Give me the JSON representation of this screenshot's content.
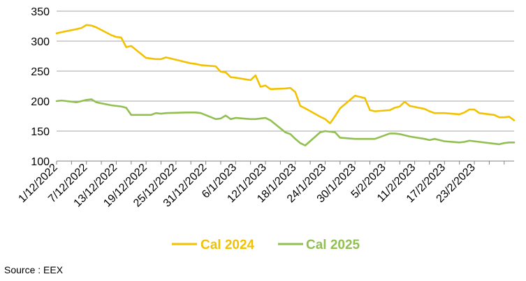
{
  "chart_data": {
    "type": "line",
    "title": "",
    "xlabel": "",
    "ylabel": "",
    "ylim": [
      100,
      350
    ],
    "yticks": [
      100,
      150,
      200,
      250,
      300,
      350
    ],
    "grid": true,
    "legend_position": "bottom",
    "x_tick_labels": [
      "1/12/2022",
      "7/12/2022",
      "13/12/2022",
      "19/12/2022",
      "25/12/2022",
      "31/12/2022",
      "6/1/2023",
      "12/1/2023",
      "18/1/2023",
      "24/1/2023",
      "30/1/2023",
      "5/2/2023",
      "11/2/2023",
      "17/2/2023",
      "23/2/2023"
    ],
    "x_range": [
      "2022-12-01",
      "2023-03-03"
    ],
    "series": [
      {
        "name": "Cal 2024",
        "color": "#F2C200",
        "x": [
          "2022-12-01",
          "2022-12-02",
          "2022-12-05",
          "2022-12-06",
          "2022-12-07",
          "2022-12-08",
          "2022-12-09",
          "2022-12-12",
          "2022-12-13",
          "2022-12-14",
          "2022-12-15",
          "2022-12-16",
          "2022-12-19",
          "2022-12-20",
          "2022-12-21",
          "2022-12-22",
          "2022-12-23",
          "2022-12-27",
          "2022-12-28",
          "2022-12-29",
          "2022-12-30",
          "2023-01-02",
          "2023-01-03",
          "2023-01-04",
          "2023-01-05",
          "2023-01-06",
          "2023-01-09",
          "2023-01-10",
          "2023-01-11",
          "2023-01-12",
          "2023-01-13",
          "2023-01-16",
          "2023-01-17",
          "2023-01-18",
          "2023-01-19",
          "2023-01-20",
          "2023-01-23",
          "2023-01-24",
          "2023-01-25",
          "2023-01-26",
          "2023-01-27",
          "2023-01-30",
          "2023-01-31",
          "2023-02-01",
          "2023-02-02",
          "2023-02-03",
          "2023-02-06",
          "2023-02-07",
          "2023-02-08",
          "2023-02-09",
          "2023-02-10",
          "2023-02-13",
          "2023-02-14",
          "2023-02-15",
          "2023-02-16",
          "2023-02-17",
          "2023-02-20",
          "2023-02-21",
          "2023-02-22",
          "2023-02-23",
          "2023-02-24",
          "2023-02-27",
          "2023-02-28",
          "2023-03-01",
          "2023-03-02",
          "2023-03-03"
        ],
        "values": [
          313,
          315,
          320,
          322,
          327,
          326,
          323,
          310,
          307,
          306,
          290,
          292,
          272,
          271,
          270,
          270,
          273,
          265,
          263,
          262,
          260,
          258,
          249,
          248,
          240,
          239,
          235,
          243,
          224,
          226,
          220,
          221,
          222,
          215,
          192,
          188,
          174,
          170,
          163,
          175,
          188,
          209,
          207,
          205,
          185,
          183,
          185,
          189,
          191,
          199,
          192,
          187,
          183,
          180,
          180,
          180,
          178,
          181,
          186,
          186,
          180,
          177,
          173,
          173,
          174,
          168
        ]
      },
      {
        "name": "Cal 2025",
        "color": "#92C050",
        "x": [
          "2022-12-01",
          "2022-12-02",
          "2022-12-05",
          "2022-12-06",
          "2022-12-07",
          "2022-12-08",
          "2022-12-09",
          "2022-12-12",
          "2022-12-13",
          "2022-12-14",
          "2022-12-15",
          "2022-12-16",
          "2022-12-19",
          "2022-12-20",
          "2022-12-21",
          "2022-12-22",
          "2022-12-23",
          "2022-12-27",
          "2022-12-28",
          "2022-12-29",
          "2022-12-30",
          "2023-01-02",
          "2023-01-03",
          "2023-01-04",
          "2023-01-05",
          "2023-01-06",
          "2023-01-09",
          "2023-01-10",
          "2023-01-11",
          "2023-01-12",
          "2023-01-13",
          "2023-01-16",
          "2023-01-17",
          "2023-01-18",
          "2023-01-19",
          "2023-01-20",
          "2023-01-23",
          "2023-01-24",
          "2023-01-25",
          "2023-01-26",
          "2023-01-27",
          "2023-01-30",
          "2023-01-31",
          "2023-02-01",
          "2023-02-02",
          "2023-02-03",
          "2023-02-06",
          "2023-02-07",
          "2023-02-08",
          "2023-02-09",
          "2023-02-10",
          "2023-02-13",
          "2023-02-14",
          "2023-02-15",
          "2023-02-16",
          "2023-02-17",
          "2023-02-20",
          "2023-02-21",
          "2023-02-22",
          "2023-02-23",
          "2023-02-24",
          "2023-02-27",
          "2023-02-28",
          "2023-03-01",
          "2023-03-02",
          "2023-03-03"
        ],
        "values": [
          200,
          201,
          198,
          200,
          202,
          203,
          198,
          193,
          192,
          191,
          189,
          177,
          177,
          177,
          180,
          179,
          180,
          181,
          181,
          181,
          180,
          170,
          171,
          176,
          170,
          172,
          170,
          170,
          171,
          172,
          168,
          148,
          145,
          137,
          130,
          126,
          148,
          150,
          149,
          148,
          139,
          137,
          137,
          137,
          137,
          137,
          146,
          146,
          145,
          143,
          141,
          137,
          135,
          137,
          135,
          133,
          131,
          132,
          134,
          133,
          132,
          129,
          128,
          130,
          131,
          131
        ]
      }
    ]
  },
  "source_text": "Source : EEX"
}
